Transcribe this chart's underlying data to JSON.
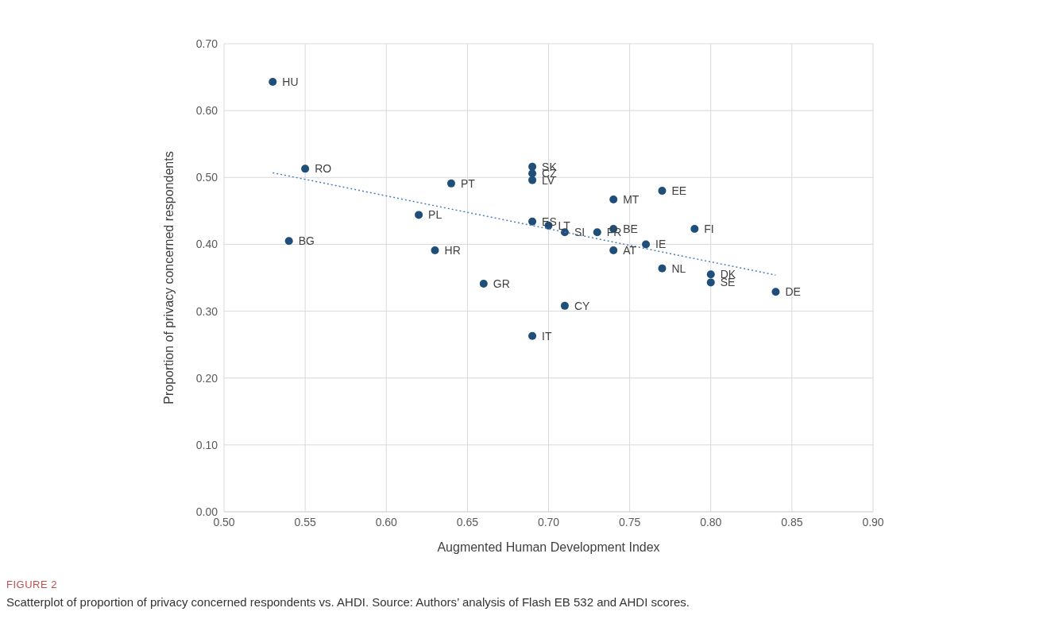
{
  "chart_data": {
    "type": "scatter",
    "xlabel": "Augmented Human Development Index",
    "ylabel": "Proportion of privacy concerned respondents",
    "xlim": [
      0.5,
      0.9
    ],
    "xticks": [
      {
        "value": 0.5,
        "label": "0.50"
      },
      {
        "value": 0.55,
        "label": "0.55"
      },
      {
        "value": 0.6,
        "label": "0.60"
      },
      {
        "value": 0.65,
        "label": "0.65"
      },
      {
        "value": 0.7,
        "label": "0.70"
      },
      {
        "value": 0.75,
        "label": "0.75"
      },
      {
        "value": 0.8,
        "label": "0.80"
      },
      {
        "value": 0.85,
        "label": "0.85"
      },
      {
        "value": 0.9,
        "label": "0.90"
      }
    ],
    "ylim": [
      0,
      0.7
    ],
    "yticks": [
      {
        "value": 0,
        "label": "0.00"
      },
      {
        "value": 0.1,
        "label": "0.10"
      },
      {
        "value": 0.2,
        "label": "0.20"
      },
      {
        "value": 0.3,
        "label": "0.30"
      },
      {
        "value": 0.4,
        "label": "0.40"
      },
      {
        "value": 0.5,
        "label": "0.50"
      },
      {
        "value": 0.6,
        "label": "0.60"
      },
      {
        "value": 0.7,
        "label": "0.70"
      }
    ],
    "grid": true,
    "legend": false,
    "marker": "circle",
    "series": [
      {
        "color": "#1f4e79",
        "x": [
          0.53,
          0.55,
          0.54,
          0.62,
          0.64,
          0.63,
          0.66,
          0.71,
          0.69,
          0.69,
          0.69,
          0.69,
          0.69,
          0.7,
          0.71,
          0.73,
          0.74,
          0.74,
          0.74,
          0.77,
          0.76,
          0.79,
          0.77,
          0.8,
          0.8,
          0.84
        ],
        "values": [
          0.643,
          0.513,
          0.405,
          0.444,
          0.491,
          0.391,
          0.341,
          0.308,
          0.263,
          0.516,
          0.506,
          0.496,
          0.434,
          0.428,
          0.418,
          0.418,
          0.423,
          0.467,
          0.391,
          0.48,
          0.4,
          0.423,
          0.364,
          0.355,
          0.343,
          0.329
        ]
      },
      {
        "type": "line",
        "color": "#4a7ebb",
        "line_style": "dotted",
        "marker": "none",
        "x": [
          0.53,
          0.84
        ],
        "values": [
          0.507,
          0.354
        ]
      }
    ],
    "annotations": [
      {
        "text": "HU",
        "x": 0.53,
        "y": 0.643
      },
      {
        "text": "RO",
        "x": 0.55,
        "y": 0.513
      },
      {
        "text": "BG",
        "x": 0.54,
        "y": 0.405
      },
      {
        "text": "PL",
        "x": 0.62,
        "y": 0.444
      },
      {
        "text": "PT",
        "x": 0.64,
        "y": 0.491
      },
      {
        "text": "HR",
        "x": 0.63,
        "y": 0.391
      },
      {
        "text": "GR",
        "x": 0.66,
        "y": 0.341
      },
      {
        "text": "CY",
        "x": 0.71,
        "y": 0.308
      },
      {
        "text": "IT",
        "x": 0.69,
        "y": 0.263
      },
      {
        "text": "SK",
        "x": 0.69,
        "y": 0.516
      },
      {
        "text": "CZ",
        "x": 0.69,
        "y": 0.506
      },
      {
        "text": "LV",
        "x": 0.69,
        "y": 0.496
      },
      {
        "text": "ES",
        "x": 0.69,
        "y": 0.434
      },
      {
        "text": "LT",
        "x": 0.7,
        "y": 0.428
      },
      {
        "text": "SI",
        "x": 0.71,
        "y": 0.418
      },
      {
        "text": "FR",
        "x": 0.73,
        "y": 0.418
      },
      {
        "text": "BE",
        "x": 0.74,
        "y": 0.423
      },
      {
        "text": "MT",
        "x": 0.74,
        "y": 0.467
      },
      {
        "text": "AT",
        "x": 0.74,
        "y": 0.391
      },
      {
        "text": "EE",
        "x": 0.77,
        "y": 0.48
      },
      {
        "text": "IE",
        "x": 0.76,
        "y": 0.4
      },
      {
        "text": "FI",
        "x": 0.79,
        "y": 0.423
      },
      {
        "text": "NL",
        "x": 0.77,
        "y": 0.364
      },
      {
        "text": "DK",
        "x": 0.8,
        "y": 0.355
      },
      {
        "text": "SE",
        "x": 0.8,
        "y": 0.343
      },
      {
        "text": "DE",
        "x": 0.84,
        "y": 0.329
      },
      "FIGURE 2",
      "Scatterplot of proportion of privacy concerned respondents vs. AHDI. Source: Authors’ analysis of Flash EB 532 and AHDI scores."
    ]
  }
}
